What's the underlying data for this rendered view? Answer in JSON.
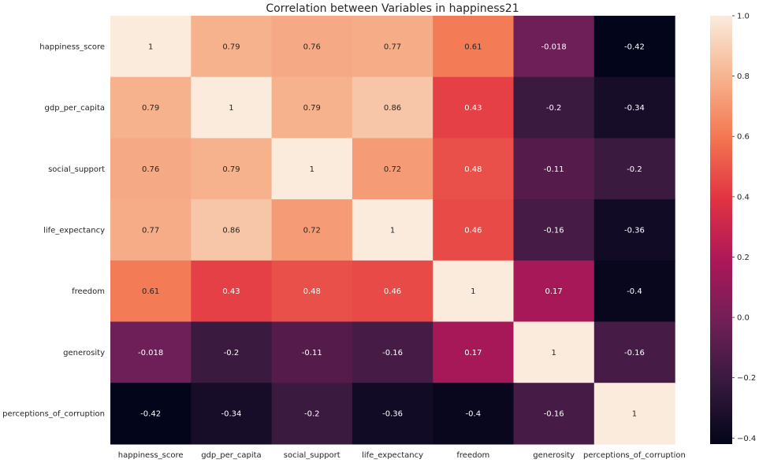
{
  "chart_data": {
    "type": "heatmap",
    "title": "Correlation between Variables in happiness21",
    "rows": [
      "happiness_score",
      "gdp_per_capita",
      "social_support",
      "life_expectancy",
      "freedom",
      "generosity",
      "perceptions_of_corruption"
    ],
    "columns": [
      "happiness_score",
      "gdp_per_capita",
      "social_support",
      "life_expectancy",
      "freedom",
      "generosity",
      "perceptions_of_corruption"
    ],
    "values": [
      [
        1,
        0.79,
        0.76,
        0.77,
        0.61,
        -0.018,
        -0.42
      ],
      [
        0.79,
        1,
        0.79,
        0.86,
        0.43,
        -0.2,
        -0.34
      ],
      [
        0.76,
        0.79,
        1,
        0.72,
        0.48,
        -0.11,
        -0.2
      ],
      [
        0.77,
        0.86,
        0.72,
        1,
        0.46,
        -0.16,
        -0.36
      ],
      [
        0.61,
        0.43,
        0.48,
        0.46,
        1,
        0.17,
        -0.4
      ],
      [
        -0.018,
        -0.2,
        -0.11,
        -0.16,
        0.17,
        1,
        -0.16
      ],
      [
        -0.42,
        -0.34,
        -0.2,
        -0.36,
        -0.4,
        -0.16,
        1
      ]
    ],
    "labels": [
      [
        "1",
        "0.79",
        "0.76",
        "0.77",
        "0.61",
        "-0.018",
        "-0.42"
      ],
      [
        "0.79",
        "1",
        "0.79",
        "0.86",
        "0.43",
        "-0.2",
        "-0.34"
      ],
      [
        "0.76",
        "0.79",
        "1",
        "0.72",
        "0.48",
        "-0.11",
        "-0.2"
      ],
      [
        "0.77",
        "0.86",
        "0.72",
        "1",
        "0.46",
        "-0.16",
        "-0.36"
      ],
      [
        "0.61",
        "0.43",
        "0.48",
        "0.46",
        "1",
        "0.17",
        "-0.4"
      ],
      [
        "-0.018",
        "-0.2",
        "-0.11",
        "-0.16",
        "0.17",
        "1",
        "-0.16"
      ],
      [
        "-0.42",
        "-0.34",
        "-0.2",
        "-0.36",
        "-0.4",
        "-0.16",
        "1"
      ]
    ],
    "colorbar": {
      "range": [
        -0.42,
        1.0
      ],
      "ticks": [
        -0.4,
        -0.2,
        0.0,
        0.2,
        0.4,
        0.6,
        0.8,
        1.0
      ],
      "tick_labels": [
        "−0.4",
        "−0.2",
        "0.0",
        "0.2",
        "0.4",
        "0.6",
        "0.8",
        "1.0"
      ],
      "colormap": "rocket",
      "colormap_stops": [
        "#03051a",
        "#36193e",
        "#701f57",
        "#ad1759",
        "#e13342",
        "#f37651",
        "#f6b48f",
        "#faebdd"
      ]
    },
    "label_color_dark": "#262626",
    "label_color_light": "#ffffff"
  }
}
